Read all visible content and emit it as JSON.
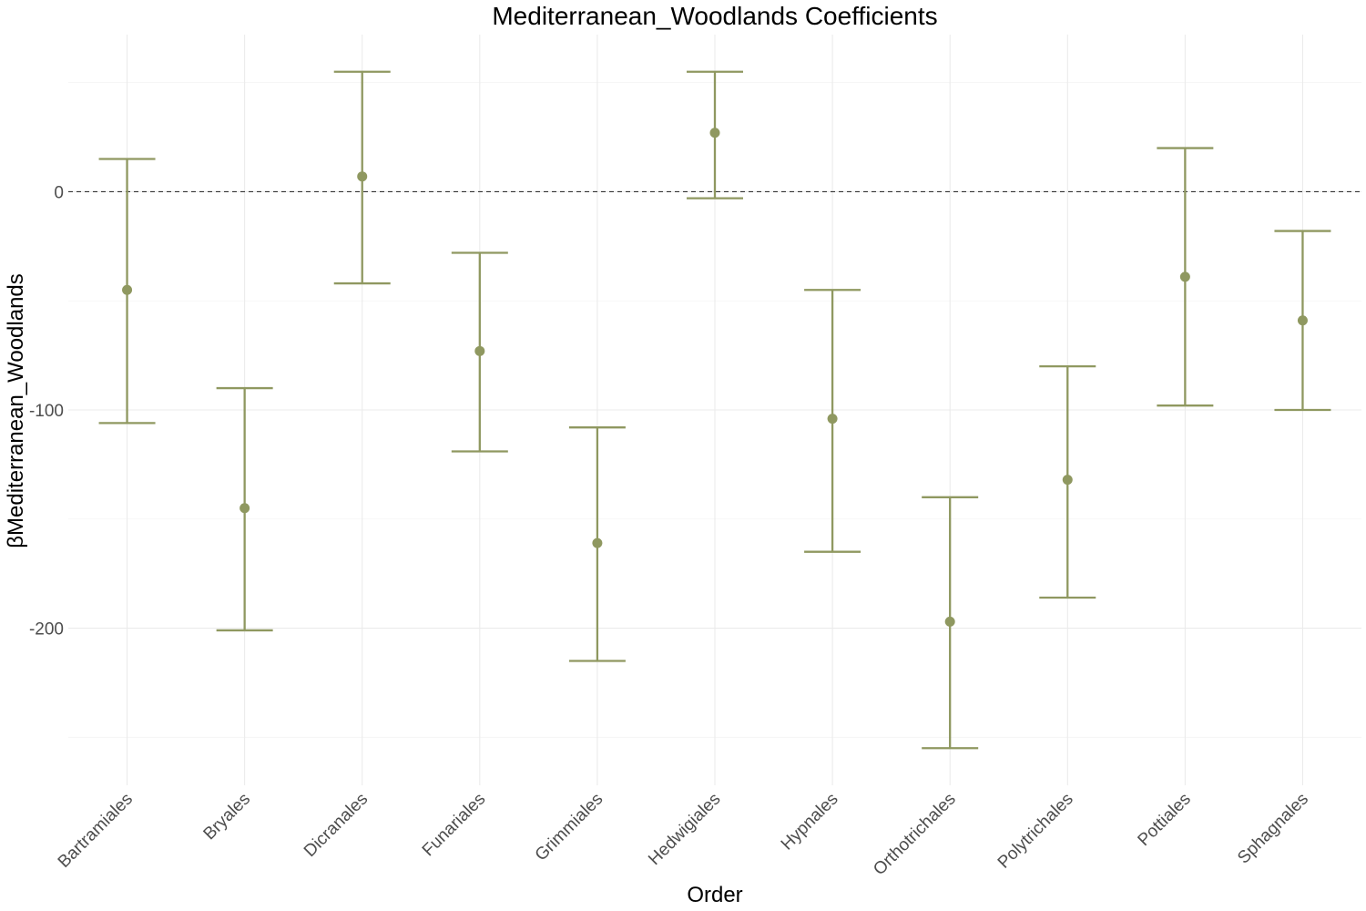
{
  "chart_data": {
    "type": "errorbar",
    "title": "Mediterranean_Woodlands Coefficients",
    "xlabel": "Order",
    "ylabel": "βMediterranean_Woodlands",
    "categories": [
      "Bartramiales",
      "Bryales",
      "Dicranales",
      "Funariales",
      "Grimmiales",
      "Hedwigiales",
      "Hypnales",
      "Orthotrichales",
      "Polytrichales",
      "Pottiales",
      "Sphagnales"
    ],
    "estimate": [
      -45,
      -145,
      7,
      -73,
      -161,
      27,
      -104,
      -197,
      -132,
      -39,
      -59
    ],
    "lower": [
      -106,
      -201,
      -42,
      -119,
      -215,
      -3,
      -165,
      -255,
      -186,
      -98,
      -100
    ],
    "upper": [
      15,
      -90,
      55,
      -28,
      -108,
      55,
      -45,
      -140,
      -80,
      20,
      -18
    ],
    "ylim": [
      -272,
      72
    ],
    "yticks": [
      0,
      -100,
      -200
    ],
    "ytick_labels": [
      "0",
      "-100",
      "-200"
    ],
    "reference_line": 0,
    "grid": true,
    "color": "#8f9860"
  }
}
